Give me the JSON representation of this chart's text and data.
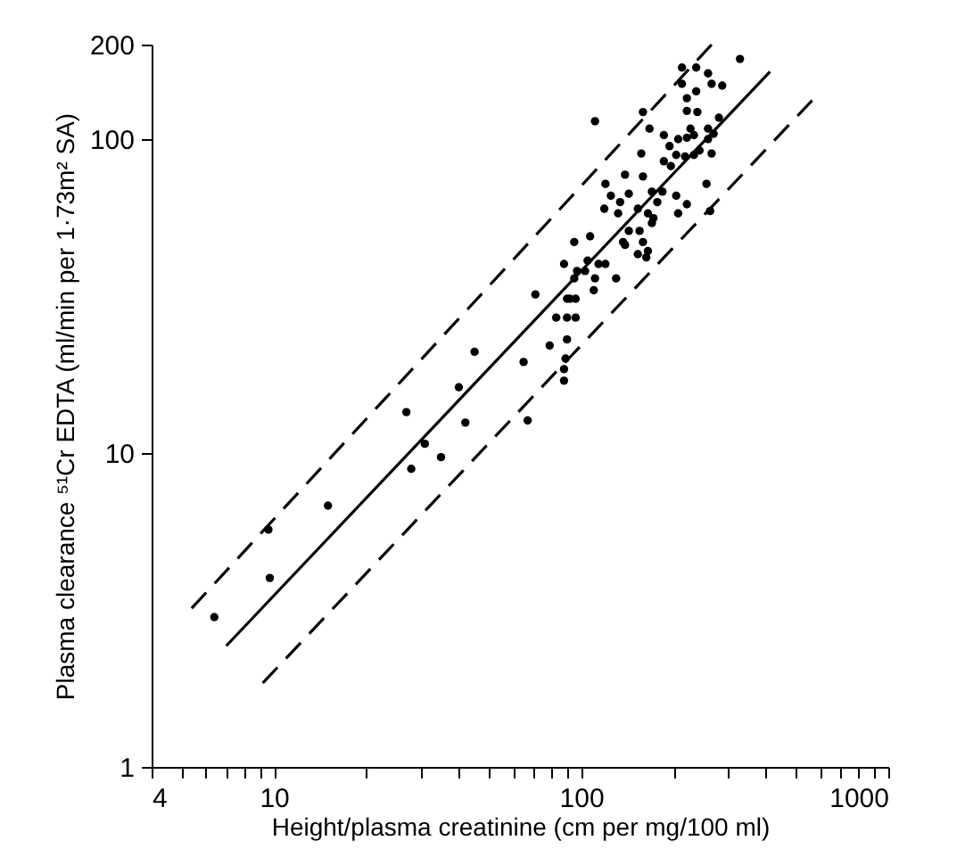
{
  "chart_data": {
    "type": "scatter",
    "xlabel": "Height/plasma creatinine (cm per mg/100 ml)",
    "ylabel": "Plasma clearance ⁵¹Cr EDTA (ml/min per 1·73m² SA)",
    "log": "xy",
    "xlim": [
      4,
      1000
    ],
    "ylim": [
      1,
      200
    ],
    "xticks": [
      4,
      {
        "value": 5,
        "label": null
      },
      {
        "value": 6,
        "label": null
      },
      {
        "value": 7,
        "label": null
      },
      {
        "value": 8,
        "label": null
      },
      {
        "value": 9,
        "label": null
      },
      10,
      {
        "value": 20,
        "label": null
      },
      {
        "value": 30,
        "label": null
      },
      {
        "value": 40,
        "label": null
      },
      {
        "value": 50,
        "label": null
      },
      {
        "value": 60,
        "label": null
      },
      {
        "value": 70,
        "label": null
      },
      {
        "value": 80,
        "label": null
      },
      {
        "value": 90,
        "label": null
      },
      100,
      {
        "value": 200,
        "label": null
      },
      {
        "value": 300,
        "label": null
      },
      {
        "value": 400,
        "label": null
      },
      {
        "value": 500,
        "label": null
      },
      {
        "value": 600,
        "label": null
      },
      {
        "value": 700,
        "label": null
      },
      {
        "value": 800,
        "label": null
      },
      {
        "value": 900,
        "label": null
      },
      1000
    ],
    "yticks": [
      1,
      10,
      100,
      200
    ],
    "series": [
      {
        "color": "#000000",
        "marker": "circle",
        "x": [
          6.4,
          9.7,
          9.6,
          15,
          27,
          28,
          31,
          35,
          40,
          42,
          45,
          65,
          67,
          71,
          79,
          83,
          90,
          90,
          89,
          88,
          88,
          96,
          90,
          92,
          95,
          88,
          97,
          103,
          105,
          111,
          110,
          114,
          120,
          130,
          95,
          107,
          137,
          139,
          143,
          155,
          159,
          163,
          165,
          153,
          119,
          132,
          134,
          125,
          120,
          139,
          159,
          143,
          153,
          165,
          172,
          170,
          177,
          170,
          184,
          204,
          221,
          207,
          263,
          256,
          157,
          186,
          196,
          204,
          218,
          233,
          243,
          266,
          194,
          207,
          221,
          233,
          259,
          186,
          167,
          227,
          259,
          270,
          281,
          239,
          221,
          221,
          237,
          213,
          266,
          288,
          213,
          237,
          259,
          329,
          159,
          111,
          96
        ],
        "values": [
          3.0,
          4.0,
          5.7,
          6.8,
          13.5,
          8.9,
          10.7,
          9.7,
          16.2,
          12.5,
          21,
          19.5,
          12.7,
          32,
          22,
          27,
          27,
          23,
          20,
          18.5,
          17,
          27,
          31,
          31,
          36,
          40,
          38,
          38,
          41,
          36,
          33,
          40,
          40,
          36,
          47,
          49,
          47,
          46,
          51,
          51,
          47,
          42,
          44,
          43,
          60,
          58,
          63,
          66,
          72,
          77,
          76,
          67,
          60,
          58,
          56,
          54,
          63,
          68,
          68,
          66,
          62,
          58,
          59,
          72,
          90,
          85,
          82,
          89,
          88,
          89,
          92,
          90,
          95,
          100,
          101,
          103,
          100,
          103,
          108,
          108,
          108,
          104,
          117,
          122,
          123,
          135,
          142,
          150,
          150,
          148,
          169,
          169,
          162,
          180,
          122,
          114,
          31
        ]
      },
      {
        "type": "line",
        "color": "#000000",
        "line_style": "solid",
        "marker": "none",
        "x": [
          7.0,
          412
        ],
        "values": [
          2.43,
          164
        ]
      },
      {
        "type": "line",
        "color": "#000000",
        "line_style": "dashed",
        "marker": "none",
        "x": [
          5.4,
          266
        ],
        "values": [
          3.2,
          200
        ]
      },
      {
        "type": "line",
        "color": "#000000",
        "line_style": "dashed",
        "marker": "none",
        "x": [
          9.2,
          574
        ],
        "values": [
          1.85,
          135
        ]
      }
    ]
  }
}
